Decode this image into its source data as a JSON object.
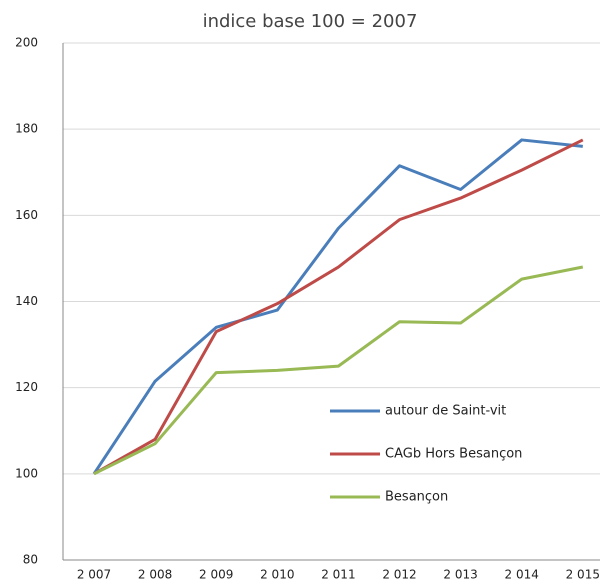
{
  "chart_data": {
    "type": "line",
    "title": "indice base 100 = 2007",
    "categories": [
      "2 007",
      "2 008",
      "2 009",
      "2 010",
      "2 011",
      "2 012",
      "2 013",
      "2 014",
      "2 015"
    ],
    "series": [
      {
        "name": "autour de Saint-vit",
        "color": "#4a7ebb",
        "values": [
          100,
          121.5,
          134,
          138,
          157,
          171.5,
          166,
          177.5,
          176
        ]
      },
      {
        "name": "CAGb Hors Besançon",
        "color": "#be4b48",
        "values": [
          100,
          108,
          133,
          139.5,
          148,
          159,
          164,
          170.5,
          177.5
        ]
      },
      {
        "name": "Besançon",
        "color": "#98b954",
        "values": [
          100,
          107,
          123.5,
          124,
          125,
          135.3,
          135,
          145.2,
          148
        ]
      }
    ],
    "ylim": [
      80,
      200
    ],
    "yticks": [
      80,
      100,
      120,
      140,
      160,
      180,
      200
    ],
    "grid": true
  }
}
